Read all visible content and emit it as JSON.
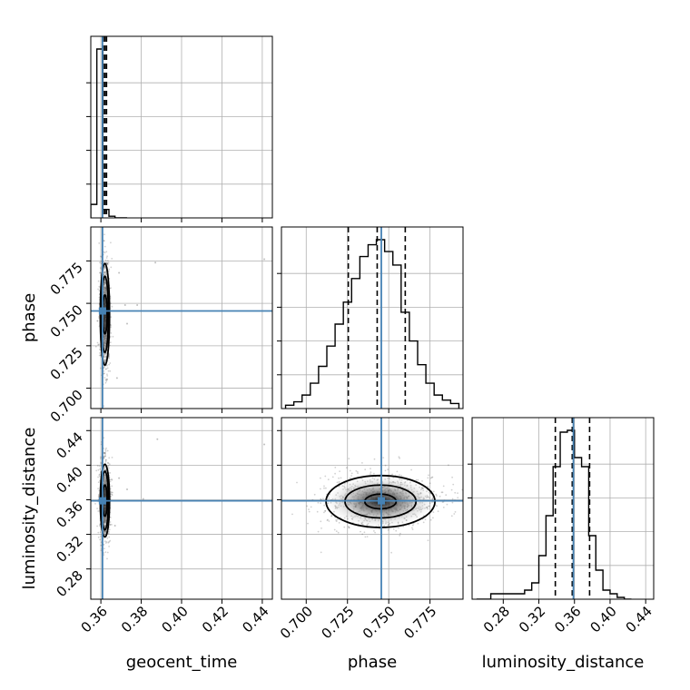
{
  "chart_data": {
    "type": "corner",
    "parameters": [
      "geocent_time",
      "phase",
      "luminosity_distance"
    ],
    "truths": {
      "geocent_time": 0.3608,
      "phase": 0.7455,
      "luminosity_distance": 0.3588
    },
    "truth_color": "#4682b4",
    "quantile_color": "#000000",
    "grid": true,
    "panels": [
      {
        "id": "hist-geocent_time",
        "type": "histogram",
        "parameter": "geocent_time",
        "xlim": [
          0.355,
          0.445
        ],
        "xticks": [
          0.36,
          0.38,
          0.4,
          0.42,
          0.44
        ],
        "bin_edges": [
          0.355,
          0.358,
          0.361,
          0.364,
          0.367,
          0.37,
          0.373
        ],
        "counts": [
          0.08,
          1.0,
          0.05,
          0.01,
          0.0,
          0.0
        ],
        "quantiles": [
          0.3612,
          0.362,
          0.3628
        ]
      },
      {
        "id": "hist-phase",
        "type": "histogram",
        "parameter": "phase",
        "xlim": [
          0.685,
          0.795
        ],
        "xticks": [
          0.7,
          0.725,
          0.75,
          0.775
        ],
        "xtick_labels": [
          "0.700",
          "0.725",
          "0.750",
          "0.775"
        ],
        "bin_edges": [
          0.6875,
          0.6925,
          0.6975,
          0.7025,
          0.7075,
          0.7125,
          0.7175,
          0.7225,
          0.7275,
          0.7325,
          0.7375,
          0.7425,
          0.7475,
          0.7525,
          0.7575,
          0.7625,
          0.7675,
          0.7725,
          0.7775,
          0.7825,
          0.7875,
          0.7925
        ],
        "counts": [
          0.02,
          0.04,
          0.08,
          0.15,
          0.25,
          0.37,
          0.5,
          0.63,
          0.77,
          0.9,
          0.97,
          1.0,
          0.93,
          0.85,
          0.57,
          0.4,
          0.26,
          0.15,
          0.08,
          0.05,
          0.03
        ],
        "quantiles": [
          0.7255,
          0.743,
          0.76
        ]
      },
      {
        "id": "hist-luminosity_distance",
        "type": "histogram",
        "parameter": "luminosity_distance",
        "xlim": [
          0.245,
          0.449
        ],
        "xticks": [
          0.28,
          0.32,
          0.36,
          0.4,
          0.44
        ],
        "bin_edges": [
          0.25,
          0.266,
          0.304,
          0.312,
          0.32,
          0.328,
          0.336,
          0.344,
          0.352,
          0.36,
          0.368,
          0.376,
          0.384,
          0.392,
          0.4,
          0.408,
          0.416,
          0.424
        ],
        "counts": [
          0.0,
          0.03,
          0.05,
          0.09,
          0.24,
          0.46,
          0.73,
          0.92,
          0.93,
          0.78,
          0.73,
          0.35,
          0.16,
          0.05,
          0.03,
          0.01,
          0.0
        ],
        "quantiles": [
          0.3385,
          0.3575,
          0.377
        ]
      },
      {
        "id": "kde-geocent_time-phase",
        "type": "density2d",
        "x": "geocent_time",
        "y": "phase",
        "xlim": [
          0.355,
          0.445
        ],
        "ylim": [
          0.688,
          0.795
        ],
        "yticks": [
          0.7,
          0.725,
          0.75,
          0.775
        ],
        "ytick_labels": [
          "0.700",
          "0.725",
          "0.750",
          "0.775"
        ],
        "center": [
          0.362,
          0.7435
        ],
        "contour_half_widths": [
          [
            0.0011,
            0.0115
          ],
          [
            0.0017,
            0.0225
          ],
          [
            0.0023,
            0.03
          ]
        ],
        "outliers": [
          [
            0.372,
            0.749
          ],
          [
            0.378,
            0.749
          ],
          [
            0.387,
            0.774
          ],
          [
            0.441,
            0.776
          ],
          [
            0.369,
            0.768
          ],
          [
            0.373,
            0.738
          ],
          [
            0.368,
            0.706
          ]
        ]
      },
      {
        "id": "kde-geocent_time-luminosity_distance",
        "type": "density2d",
        "x": "geocent_time",
        "y": "luminosity_distance",
        "xlim": [
          0.355,
          0.445
        ],
        "ylim": [
          0.245,
          0.455
        ],
        "yticks": [
          0.28,
          0.32,
          0.36,
          0.4,
          0.44
        ],
        "center": [
          0.362,
          0.359
        ],
        "contour_half_widths": [
          [
            0.0011,
            0.018
          ],
          [
            0.0017,
            0.034
          ],
          [
            0.0023,
            0.042
          ]
        ],
        "outliers": [
          [
            0.373,
            0.372
          ],
          [
            0.381,
            0.361
          ],
          [
            0.388,
            0.43
          ],
          [
            0.441,
            0.424
          ],
          [
            0.369,
            0.385
          ],
          [
            0.367,
            0.33
          ]
        ]
      },
      {
        "id": "kde-phase-luminosity_distance",
        "type": "density2d",
        "x": "phase",
        "y": "luminosity_distance",
        "xlim": [
          0.685,
          0.795
        ],
        "ylim": [
          0.245,
          0.455
        ],
        "center": [
          0.745,
          0.358
        ],
        "contour_half_widths": [
          [
            0.0095,
            0.0085
          ],
          [
            0.0215,
            0.019
          ],
          [
            0.033,
            0.03
          ]
        ],
        "outliers": []
      }
    ]
  }
}
